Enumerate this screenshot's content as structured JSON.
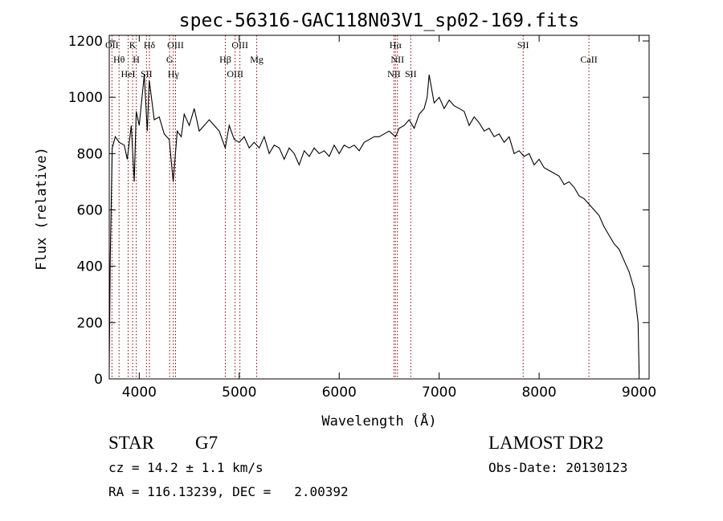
{
  "chart_data": {
    "type": "line",
    "title": "spec-56316-GAC118N03V1_sp02-169.fits",
    "xlabel": "Wavelength (Å)",
    "ylabel": "Flux (relative)",
    "xlim": [
      3700,
      9100
    ],
    "ylim": [
      0,
      1220
    ],
    "x_ticks": [
      4000,
      5000,
      6000,
      7000,
      8000,
      9000
    ],
    "x_tick_labels": [
      "4000",
      "5000",
      "6000",
      "7000",
      "8000",
      "9000"
    ],
    "y_ticks": [
      0,
      200,
      400,
      600,
      800,
      1000,
      1200
    ],
    "y_tick_labels": [
      "0",
      "200",
      "400",
      "600",
      "800",
      "1000",
      "1200"
    ],
    "grid": false,
    "line_color": "#000000",
    "marker_color": "#8b0000",
    "series": [
      {
        "x": [
          3700,
          3710,
          3730,
          3760,
          3800,
          3850,
          3880,
          3920,
          3950,
          3970,
          4000,
          4050,
          4080,
          4100,
          4150,
          4200,
          4250,
          4300,
          4340,
          4380,
          4420,
          4450,
          4500,
          4550,
          4600,
          4650,
          4700,
          4750,
          4800,
          4860,
          4900,
          4950,
          5000,
          5050,
          5100,
          5150,
          5200,
          5250,
          5300,
          5350,
          5400,
          5450,
          5500,
          5550,
          5600,
          5650,
          5700,
          5750,
          5800,
          5850,
          5900,
          5950,
          6000,
          6050,
          6100,
          6150,
          6200,
          6250,
          6300,
          6350,
          6400,
          6450,
          6500,
          6563,
          6600,
          6650,
          6700,
          6750,
          6800,
          6850,
          6880,
          6900,
          6950,
          7000,
          7050,
          7100,
          7150,
          7200,
          7250,
          7300,
          7350,
          7400,
          7450,
          7500,
          7550,
          7600,
          7650,
          7700,
          7750,
          7800,
          7850,
          7900,
          7950,
          8000,
          8050,
          8100,
          8150,
          8200,
          8250,
          8300,
          8350,
          8400,
          8450,
          8500,
          8550,
          8600,
          8650,
          8700,
          8750,
          8800,
          8850,
          8900,
          8950,
          8970,
          8990,
          9000
        ],
        "y": [
          40,
          420,
          820,
          860,
          840,
          830,
          780,
          900,
          700,
          950,
          900,
          1080,
          880,
          1060,
          920,
          930,
          870,
          850,
          700,
          880,
          860,
          940,
          900,
          960,
          880,
          900,
          920,
          900,
          880,
          820,
          900,
          850,
          840,
          860,
          820,
          840,
          820,
          860,
          800,
          830,
          820,
          780,
          820,
          800,
          760,
          810,
          790,
          820,
          800,
          810,
          790,
          830,
          800,
          830,
          820,
          830,
          810,
          840,
          850,
          860,
          860,
          870,
          880,
          860,
          890,
          900,
          920,
          890,
          940,
          960,
          1000,
          1080,
          980,
          1000,
          960,
          990,
          970,
          960,
          950,
          900,
          930,
          910,
          880,
          890,
          860,
          870,
          840,
          860,
          800,
          810,
          790,
          800,
          760,
          780,
          750,
          740,
          730,
          720,
          690,
          700,
          680,
          650,
          640,
          620,
          600,
          580,
          540,
          510,
          480,
          460,
          420,
          380,
          320,
          260,
          200,
          20
        ]
      }
    ],
    "line_markers": [
      {
        "x": 3727,
        "label": "OII"
      },
      {
        "x": 3798,
        "label": "Hθ"
      },
      {
        "x": 3889,
        "label": "HeI"
      },
      {
        "x": 3934,
        "label": "K"
      },
      {
        "x": 3970,
        "label": "H"
      },
      {
        "x": 4072,
        "label": "SII"
      },
      {
        "x": 4102,
        "label": "Hδ"
      },
      {
        "x": 4304,
        "label": "G"
      },
      {
        "x": 4341,
        "label": "Hγ"
      },
      {
        "x": 4363,
        "label": "OIII"
      },
      {
        "x": 4861,
        "label": "Hβ"
      },
      {
        "x": 4959,
        "label": "OIII"
      },
      {
        "x": 5007,
        "label": "OIII"
      },
      {
        "x": 5175,
        "label": "Mg"
      },
      {
        "x": 6548,
        "label": "NII"
      },
      {
        "x": 6563,
        "label": "Hα"
      },
      {
        "x": 6583,
        "label": "NII"
      },
      {
        "x": 6716,
        "label": "SII"
      },
      {
        "x": 7840,
        "label": "SII"
      },
      {
        "x": 8498,
        "label": "CaII"
      }
    ]
  },
  "info": {
    "class_label": "STAR",
    "subclass_label": "G7",
    "cz_text": "cz = 14.2 ± 1.1 km/s",
    "radec_text": "RA = 116.13239, DEC =   2.00392",
    "survey_text": "LAMOST DR2",
    "obsdate_text": "Obs-Date: 20130123"
  }
}
